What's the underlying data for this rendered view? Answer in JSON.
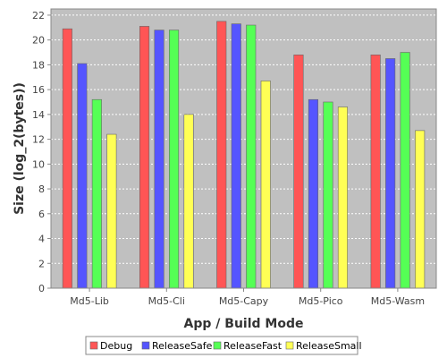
{
  "chart_data": {
    "type": "bar",
    "title": "",
    "xlabel": "App / Build Mode",
    "ylabel": "Size (log_2(bytes))",
    "categories": [
      "Md5-Lib",
      "Md5-Cli",
      "Md5-Capy",
      "Md5-Pico",
      "Md5-Wasm"
    ],
    "series": [
      {
        "name": "Debug",
        "color": "#ff5555",
        "values": [
          20.9,
          21.1,
          21.5,
          18.8,
          18.8
        ]
      },
      {
        "name": "ReleaseSafe",
        "color": "#5555ff",
        "values": [
          18.1,
          20.8,
          21.3,
          15.2,
          18.5
        ]
      },
      {
        "name": "ReleaseFast",
        "color": "#55ff55",
        "values": [
          15.2,
          20.8,
          21.2,
          15.0,
          19.0
        ]
      },
      {
        "name": "ReleaseSmall",
        "color": "#ffff55",
        "values": [
          12.4,
          14.0,
          16.7,
          14.6,
          12.7
        ]
      }
    ],
    "ylim": [
      0,
      22.5
    ],
    "yticks": [
      0,
      2,
      4,
      6,
      8,
      10,
      12,
      14,
      16,
      18,
      20,
      22
    ],
    "grid": true,
    "legend_position": "bottom",
    "plot_background": "#c0c0c0",
    "grid_color": "#ffffff"
  }
}
